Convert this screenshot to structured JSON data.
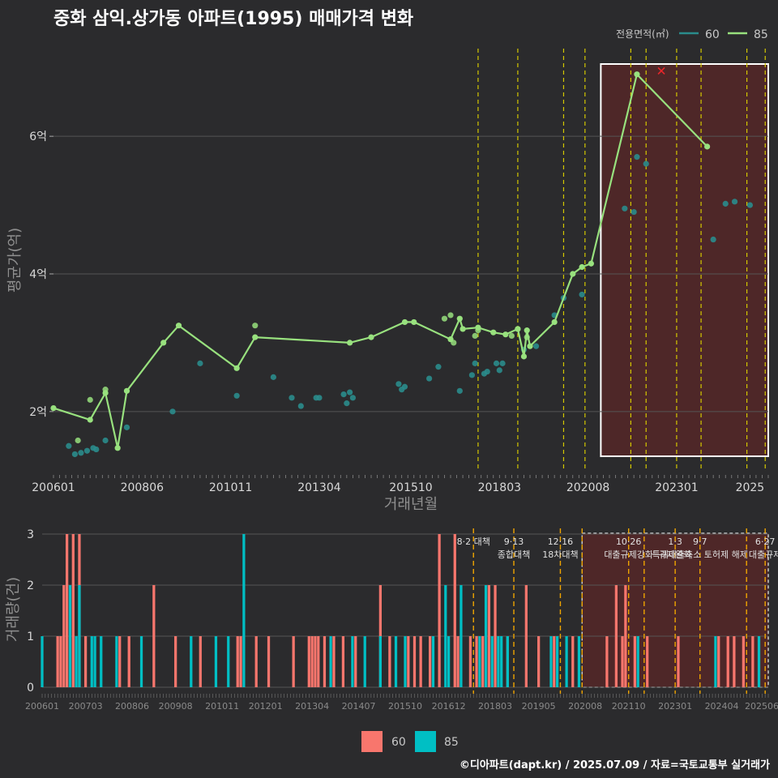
{
  "title": "중화 삼익.상가동 아파트(1995) 매매가격 변화",
  "caption": "©디아파트(dapt.kr) / 2025.07.09 / 자료=국토교통부 실거래가",
  "colors": {
    "background": "#2b2b2d",
    "series_60_line": "#2a8c8c",
    "series_85_line": "#98e17e",
    "bar_60": "#f8766d",
    "bar_85": "#00bfc4",
    "highlight": "#6b2424",
    "event_line_top": "#d4c800",
    "event_line_bottom": "#f0a500",
    "marker_x": "#e8262b"
  },
  "chart_data": [
    {
      "type": "line",
      "title": "중화 삼익.상가동 아파트(1995) 매매가격 변화",
      "xlabel": "거래년월",
      "ylabel": "평균가(억)",
      "x_ticks": [
        "200601",
        "200806",
        "201011",
        "201304",
        "201510",
        "201803",
        "202008",
        "202301",
        "2025"
      ],
      "y_ticks": [
        {
          "value": 2,
          "label": "2억"
        },
        {
          "value": 4,
          "label": "4억"
        },
        {
          "value": 6,
          "label": "6억"
        }
      ],
      "ylim": [
        1.15,
        7.25
      ],
      "grid": true,
      "legend": {
        "title": "전용면적(㎡)",
        "position": "top-right",
        "items": [
          "60",
          "85"
        ]
      },
      "series": [
        {
          "name": "60",
          "points": [
            [
              "2006-06",
              1.5
            ],
            [
              "2006-08",
              1.38
            ],
            [
              "2006-10",
              1.4
            ],
            [
              "2006-12",
              1.43
            ],
            [
              "2007-02",
              1.47
            ],
            [
              "2007-03",
              1.45
            ],
            [
              "2007-06",
              1.58
            ],
            [
              "2008-01",
              1.77
            ],
            [
              "2009-04",
              2.0
            ],
            [
              "2010-01",
              2.7
            ],
            [
              "2011-01",
              2.23
            ],
            [
              "2012-01",
              2.5
            ],
            [
              "2012-07",
              2.2
            ],
            [
              "2012-10",
              2.08
            ],
            [
              "2013-03",
              2.2
            ],
            [
              "2013-04",
              2.2
            ],
            [
              "2013-12",
              2.25
            ],
            [
              "2014-01",
              2.12
            ],
            [
              "2014-02",
              2.28
            ],
            [
              "2014-03",
              2.2
            ],
            [
              "2015-06",
              2.4
            ],
            [
              "2015-07",
              2.32
            ],
            [
              "2015-08",
              2.36
            ],
            [
              "2016-04",
              2.48
            ],
            [
              "2016-07",
              2.65
            ],
            [
              "2017-02",
              2.3
            ],
            [
              "2017-06",
              2.53
            ],
            [
              "2017-07",
              2.7
            ],
            [
              "2017-10",
              2.55
            ],
            [
              "2017-11",
              2.58
            ],
            [
              "2018-02",
              2.7
            ],
            [
              "2018-03",
              2.6
            ],
            [
              "2018-04",
              2.7
            ],
            [
              "2018-11",
              2.9
            ],
            [
              "2019-03",
              2.95
            ],
            [
              "2019-09",
              3.4
            ],
            [
              "2019-12",
              3.65
            ],
            [
              "2020-06",
              3.7
            ],
            [
              "2021-08",
              4.95
            ],
            [
              "2021-11",
              4.9
            ],
            [
              "2021-12",
              5.7
            ],
            [
              "2022-03",
              5.6
            ],
            [
              "2024-01",
              4.5
            ],
            [
              "2024-05",
              5.02
            ],
            [
              "2024-08",
              5.05
            ],
            [
              "2025-01",
              5.0
            ]
          ]
        },
        {
          "name": "85",
          "points": [
            [
              "2006-01",
              2.05
            ],
            [
              "2007-01",
              1.88
            ],
            [
              "2007-06",
              2.27
            ],
            [
              "2007-10",
              1.47
            ],
            [
              "2008-01",
              2.3
            ],
            [
              "2009-01",
              3.0
            ],
            [
              "2009-06",
              3.25
            ],
            [
              "2011-01",
              2.63
            ],
            [
              "2011-07",
              3.08
            ],
            [
              "2014-02",
              3.0
            ],
            [
              "2014-09",
              3.08
            ],
            [
              "2015-08",
              3.3
            ],
            [
              "2015-11",
              3.3
            ],
            [
              "2016-11",
              3.05
            ],
            [
              "2017-02",
              3.35
            ],
            [
              "2017-03",
              3.2
            ],
            [
              "2017-08",
              3.22
            ],
            [
              "2018-01",
              3.15
            ],
            [
              "2018-05",
              3.12
            ],
            [
              "2018-09",
              3.2
            ],
            [
              "2018-11",
              2.8
            ],
            [
              "2018-12",
              3.18
            ],
            [
              "2019-01",
              2.95
            ],
            [
              "2019-09",
              3.3
            ],
            [
              "2020-03",
              4.0
            ],
            [
              "2020-06",
              4.1
            ],
            [
              "2020-09",
              4.15
            ],
            [
              "2021-12",
              6.9
            ],
            [
              "2023-11",
              5.85
            ]
          ],
          "extra_points": [
            [
              "2006-09",
              1.58
            ],
            [
              "2007-01",
              2.17
            ],
            [
              "2007-06",
              2.32
            ],
            [
              "2011-07",
              3.25
            ],
            [
              "2016-09",
              3.35
            ],
            [
              "2016-11",
              3.4
            ],
            [
              "2016-12",
              3.0
            ],
            [
              "2017-07",
              3.1
            ],
            [
              "2017-08",
              3.18
            ],
            [
              "2018-07",
              3.1
            ],
            [
              "2018-09",
              3.2
            ],
            [
              "2018-12",
              3.08
            ]
          ]
        }
      ],
      "marker_x": [
        "2022-08",
        6.95
      ],
      "highlight_range": [
        "2020-09",
        "2025-07"
      ]
    },
    {
      "type": "bar",
      "ylabel": "거래량(건)",
      "x_ticks": [
        "200601",
        "200703",
        "200806",
        "200908",
        "201011",
        "201201",
        "201304",
        "201407",
        "201510",
        "201612",
        "201803",
        "201905",
        "202008",
        "202110",
        "202301",
        "202404",
        "202506"
      ],
      "y_ticks": [
        0,
        1,
        2,
        3
      ],
      "ylim": [
        0,
        3.1
      ],
      "legend": {
        "position": "bottom",
        "items": [
          "60",
          "85"
        ]
      },
      "series": [
        {
          "name": "60",
          "values": [
            [
              "2006-06",
              1
            ],
            [
              "2006-07",
              1
            ],
            [
              "2006-08",
              2
            ],
            [
              "2006-09",
              3
            ],
            [
              "2006-11",
              3
            ],
            [
              "2007-01",
              3
            ],
            [
              "2007-03",
              1
            ],
            [
              "2008-02",
              1
            ],
            [
              "2008-05",
              1
            ],
            [
              "2009-01",
              2
            ],
            [
              "2009-08",
              1
            ],
            [
              "2010-04",
              1
            ],
            [
              "2011-04",
              1
            ],
            [
              "2011-05",
              1
            ],
            [
              "2011-10",
              1
            ],
            [
              "2012-02",
              1
            ],
            [
              "2012-10",
              1
            ],
            [
              "2013-03",
              1
            ],
            [
              "2013-04",
              1
            ],
            [
              "2013-05",
              1
            ],
            [
              "2013-06",
              1
            ],
            [
              "2013-08",
              1
            ],
            [
              "2013-11",
              1
            ],
            [
              "2014-02",
              1
            ],
            [
              "2014-06",
              1
            ],
            [
              "2015-02",
              2
            ],
            [
              "2015-05",
              1
            ],
            [
              "2015-11",
              1
            ],
            [
              "2016-01",
              1
            ],
            [
              "2016-03",
              1
            ],
            [
              "2016-06",
              1
            ],
            [
              "2016-09",
              3
            ],
            [
              "2017-02",
              3
            ],
            [
              "2017-03",
              1
            ],
            [
              "2017-07",
              1
            ],
            [
              "2017-09",
              1
            ],
            [
              "2017-11",
              1
            ],
            [
              "2018-01",
              2
            ],
            [
              "2018-03",
              2
            ],
            [
              "2018-07",
              1
            ],
            [
              "2019-01",
              2
            ],
            [
              "2019-05",
              1
            ],
            [
              "2019-10",
              1
            ],
            [
              "2020-04",
              1
            ],
            [
              "2021-03",
              1
            ],
            [
              "2021-06",
              2
            ],
            [
              "2021-08",
              1
            ],
            [
              "2021-09",
              2
            ],
            [
              "2021-12",
              1
            ],
            [
              "2022-04",
              1
            ],
            [
              "2023-02",
              1
            ],
            [
              "2024-03",
              1
            ],
            [
              "2024-06",
              1
            ],
            [
              "2024-08",
              1
            ],
            [
              "2024-11",
              1
            ],
            [
              "2025-02",
              1
            ]
          ]
        },
        {
          "name": "85",
          "values": [
            [
              "2006-01",
              1
            ],
            [
              "2006-10",
              2
            ],
            [
              "2006-12",
              1
            ],
            [
              "2007-01",
              2
            ],
            [
              "2007-05",
              1
            ],
            [
              "2007-06",
              1
            ],
            [
              "2007-08",
              1
            ],
            [
              "2008-01",
              1
            ],
            [
              "2008-09",
              1
            ],
            [
              "2010-01",
              1
            ],
            [
              "2010-09",
              1
            ],
            [
              "2011-01",
              1
            ],
            [
              "2011-06",
              3
            ],
            [
              "2013-10",
              1
            ],
            [
              "2014-05",
              1
            ],
            [
              "2014-09",
              1
            ],
            [
              "2015-02",
              1
            ],
            [
              "2015-07",
              1
            ],
            [
              "2015-10",
              1
            ],
            [
              "2016-07",
              1
            ],
            [
              "2016-11",
              2
            ],
            [
              "2016-12",
              1
            ],
            [
              "2017-04",
              2
            ],
            [
              "2017-10",
              1
            ],
            [
              "2017-12",
              2
            ],
            [
              "2018-02",
              1
            ],
            [
              "2018-04",
              1
            ],
            [
              "2018-05",
              1
            ],
            [
              "2018-07",
              1
            ],
            [
              "2019-09",
              1
            ],
            [
              "2019-11",
              1
            ],
            [
              "2020-02",
              1
            ],
            [
              "2020-06",
              1
            ],
            [
              "2022-01",
              1
            ],
            [
              "2024-02",
              1
            ],
            [
              "2025-04",
              1
            ]
          ]
        }
      ],
      "events": [
        {
          "date": "2017-08",
          "labels": [
            "8·2 대책"
          ]
        },
        {
          "date": "2018-09",
          "labels": [
            "9·13",
            "종합대책"
          ]
        },
        {
          "date": "2019-12",
          "labels": [
            "12·16",
            "18차대책"
          ]
        },
        {
          "date": "2020-07",
          "labels": []
        },
        {
          "date": "2021-10",
          "labels": [
            "10·26",
            "대출규제강화"
          ]
        },
        {
          "date": "2022-03",
          "labels": []
        },
        {
          "date": "2023-01",
          "labels": [
            "1·3",
            "규제완화"
          ]
        },
        {
          "date": "2023-09",
          "labels": [
            "9·7",
            "특례대출축소 토허제 해제"
          ]
        },
        {
          "date": "2024-12",
          "labels": []
        },
        {
          "date": "2025-06",
          "labels": [
            "6·27",
            "대출규제"
          ]
        }
      ],
      "highlight_range": [
        "2020-07",
        "2025-07"
      ]
    }
  ]
}
